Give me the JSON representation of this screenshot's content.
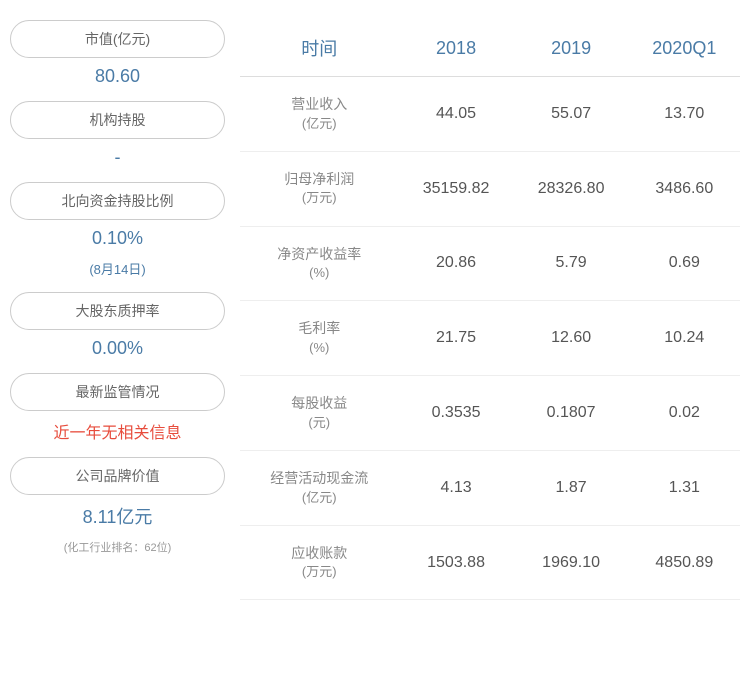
{
  "sidebar": {
    "items": [
      {
        "label": "市值(亿元)",
        "value": "80.60",
        "sub": null,
        "valueClass": "value"
      },
      {
        "label": "机构持股",
        "value": "-",
        "sub": null,
        "valueClass": "value"
      },
      {
        "label": "北向资金持股比例",
        "value": "0.10%",
        "sub": "(8月14日)",
        "valueClass": "value"
      },
      {
        "label": "大股东质押率",
        "value": "0.00%",
        "sub": null,
        "valueClass": "value"
      },
      {
        "label": "最新监管情况",
        "value": "近一年无相关信息",
        "sub": null,
        "valueClass": "value-red"
      },
      {
        "label": "公司品牌价值",
        "value": "8.11亿元",
        "sub": "(化工行业排名：62位)",
        "valueClass": "value"
      }
    ]
  },
  "table": {
    "headers": [
      "时间",
      "2018",
      "2019",
      "2020Q1"
    ],
    "rows": [
      {
        "name": "营业收入",
        "unit": "(亿元)",
        "values": [
          "44.05",
          "55.07",
          "13.70"
        ]
      },
      {
        "name": "归母净利润",
        "unit": "(万元)",
        "values": [
          "35159.82",
          "28326.80",
          "3486.60"
        ]
      },
      {
        "name": "净资产收益率",
        "unit": "(%)",
        "values": [
          "20.86",
          "5.79",
          "0.69"
        ]
      },
      {
        "name": "毛利率",
        "unit": "(%)",
        "values": [
          "21.75",
          "12.60",
          "10.24"
        ]
      },
      {
        "name": "每股收益",
        "unit": "(元)",
        "values": [
          "0.3535",
          "0.1807",
          "0.02"
        ]
      },
      {
        "name": "经营活动现金流",
        "unit": "(亿元)",
        "values": [
          "4.13",
          "1.87",
          "1.31"
        ]
      },
      {
        "name": "应收账款",
        "unit": "(万元)",
        "values": [
          "1503.88",
          "1969.10",
          "4850.89"
        ]
      }
    ]
  },
  "colors": {
    "primary": "#4a7ba6",
    "text": "#555555",
    "muted": "#888888",
    "border": "#dddddd",
    "pillBorder": "#cccccc",
    "alert": "#e74c3c",
    "background": "#ffffff"
  }
}
